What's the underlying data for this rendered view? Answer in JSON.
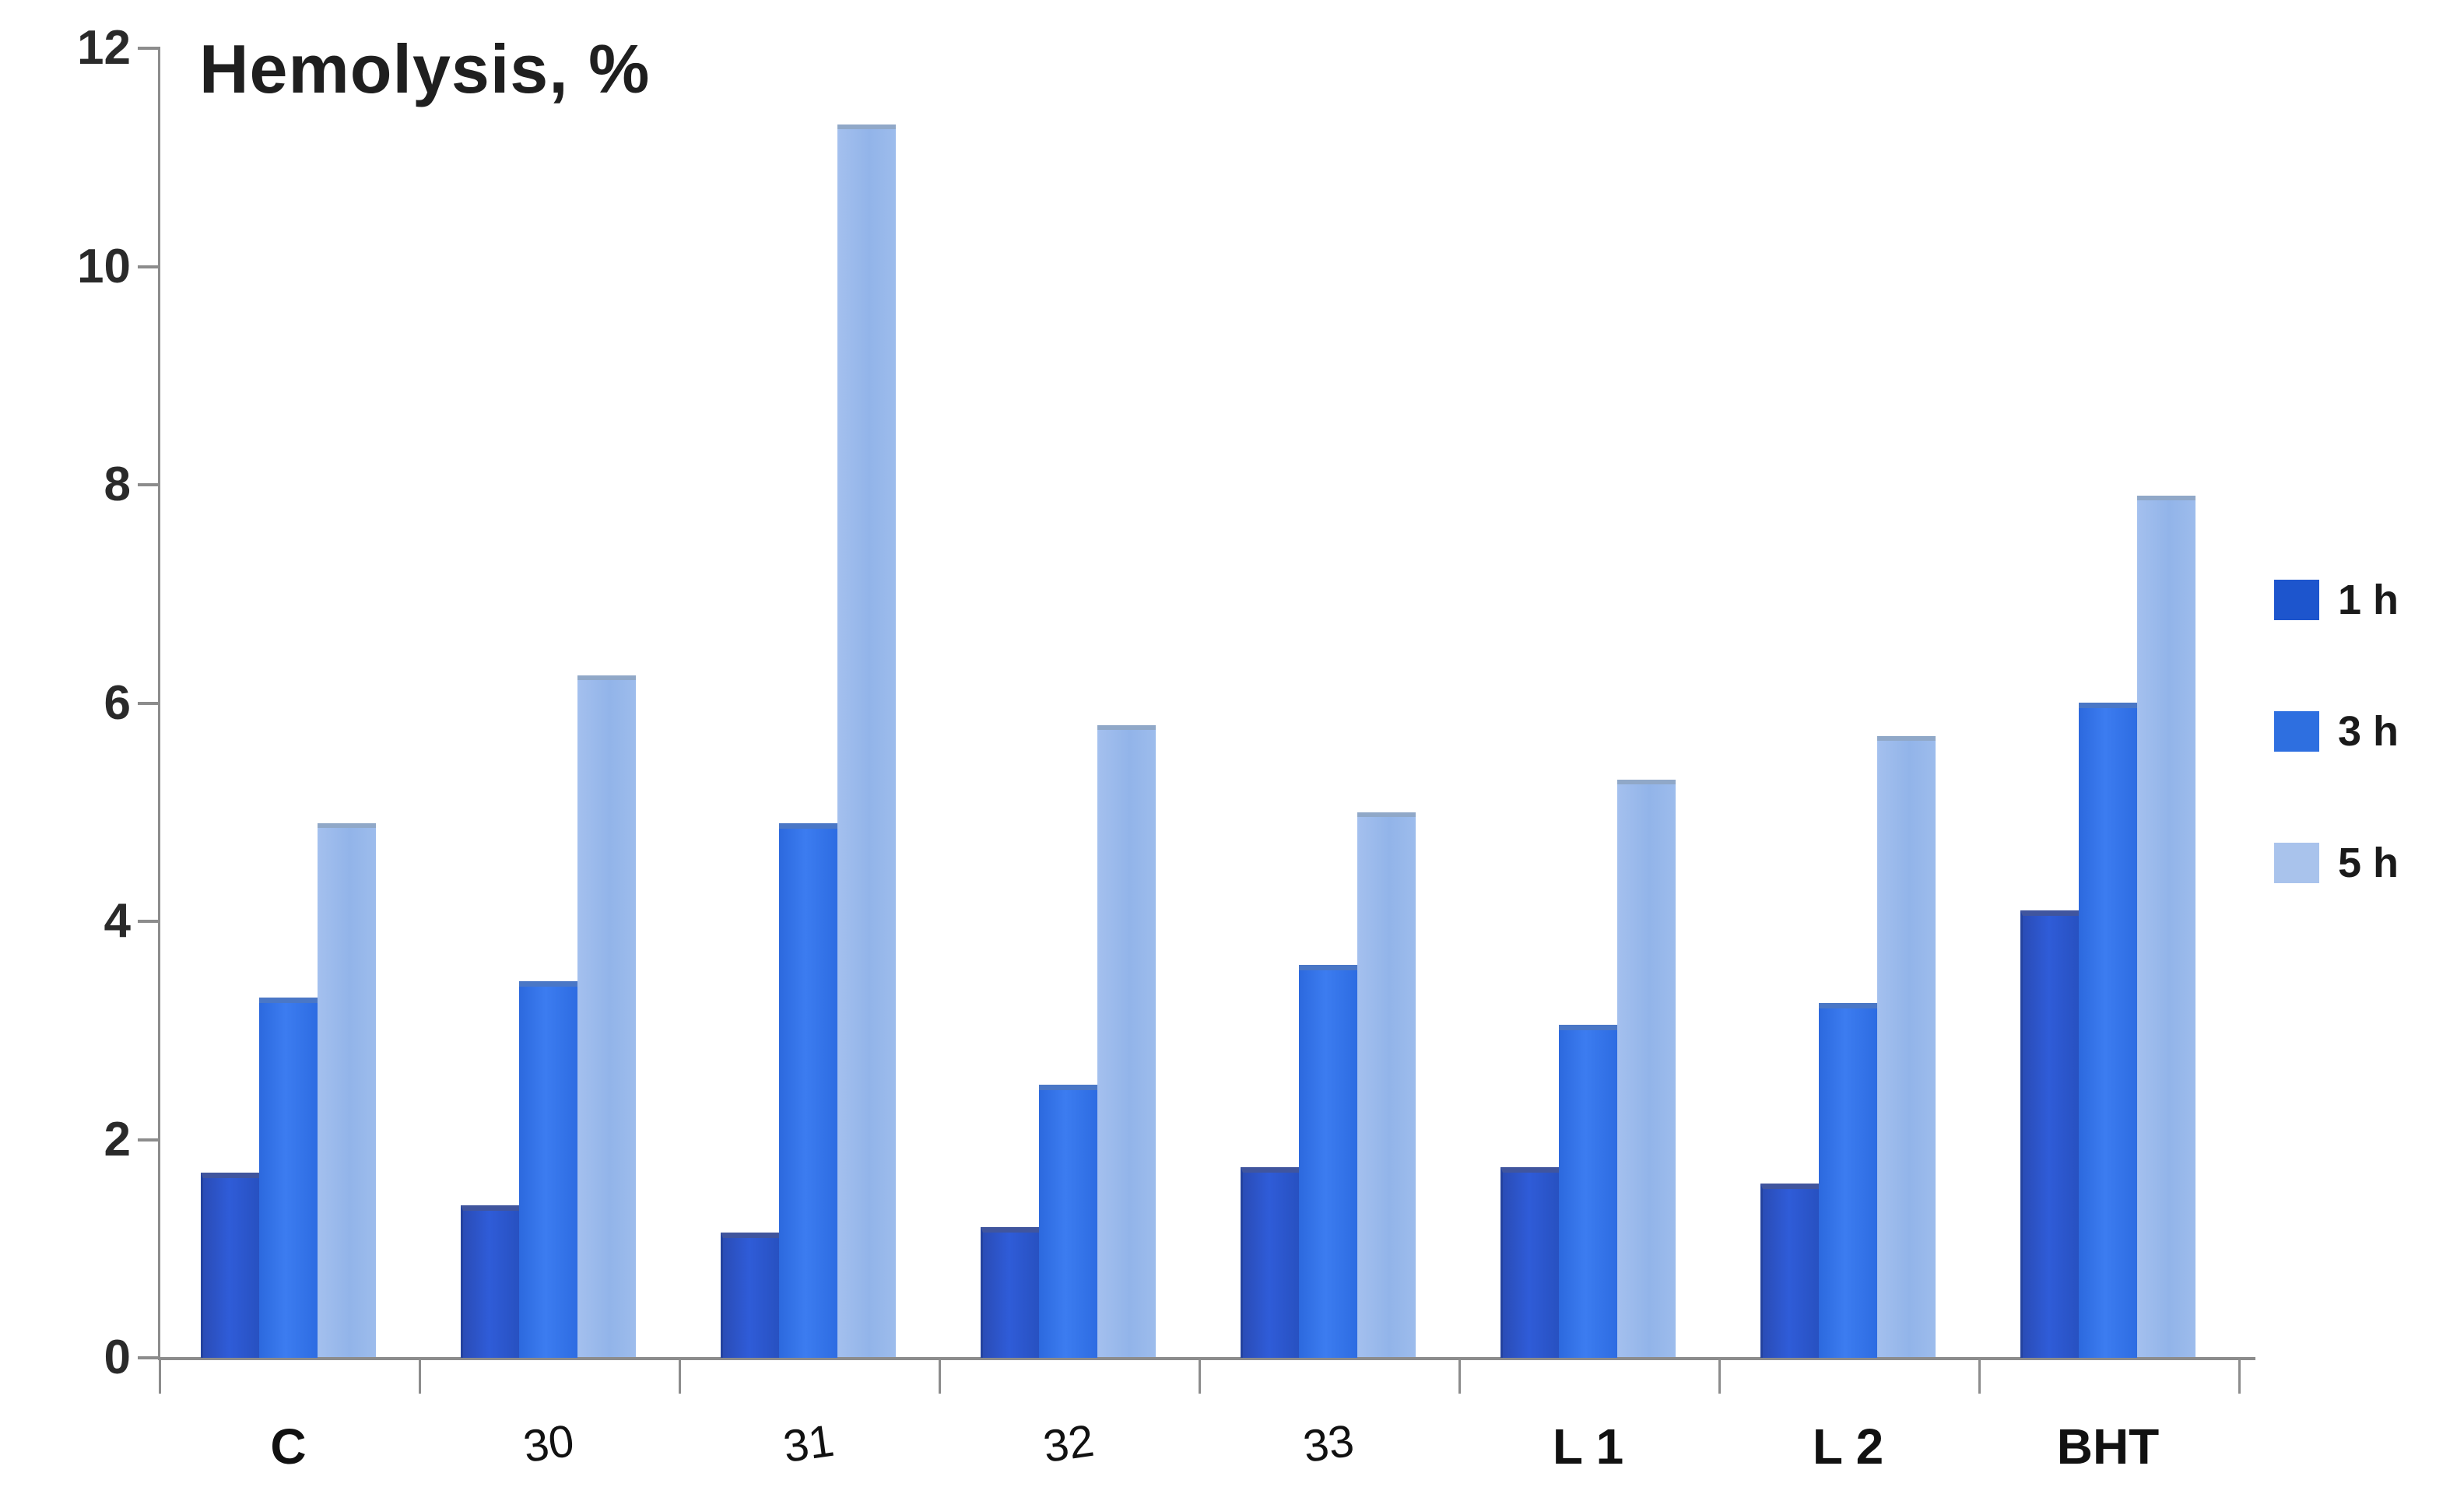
{
  "chart_data": {
    "type": "bar",
    "title": "Hemolysis, %",
    "xlabel": "",
    "ylabel": "Hemolysis, %",
    "categories": [
      "C",
      "30",
      "31",
      "32",
      "33",
      "L 1",
      "L 2",
      "BHT"
    ],
    "series": [
      {
        "name": "1 h",
        "color": "#2b52c3",
        "values": [
          1.7,
          1.4,
          1.15,
          1.2,
          1.75,
          1.75,
          1.6,
          4.1
        ]
      },
      {
        "name": "3 h",
        "color": "#2e70e5",
        "values": [
          3.3,
          3.45,
          4.9,
          2.5,
          3.6,
          3.05,
          3.25,
          6.0
        ]
      },
      {
        "name": "5 h",
        "color": "#9ab9ea",
        "values": [
          4.9,
          6.25,
          11.3,
          5.8,
          5.0,
          5.3,
          5.7,
          7.9
        ]
      }
    ],
    "ylim": [
      0,
      12
    ],
    "yticks": [
      0,
      2,
      4,
      6,
      8,
      10,
      12
    ],
    "grid": false,
    "legend_position": "right",
    "bold_categories": [
      "C",
      "L 1",
      "L 2",
      "BHT"
    ]
  },
  "colors": {
    "axis": "#8c8c8c",
    "text": "#1f1f1f",
    "background": "#ffffff",
    "series_1h": "#2b52c3",
    "series_3h": "#2e70e5",
    "series_5h": "#9ab9ea"
  }
}
